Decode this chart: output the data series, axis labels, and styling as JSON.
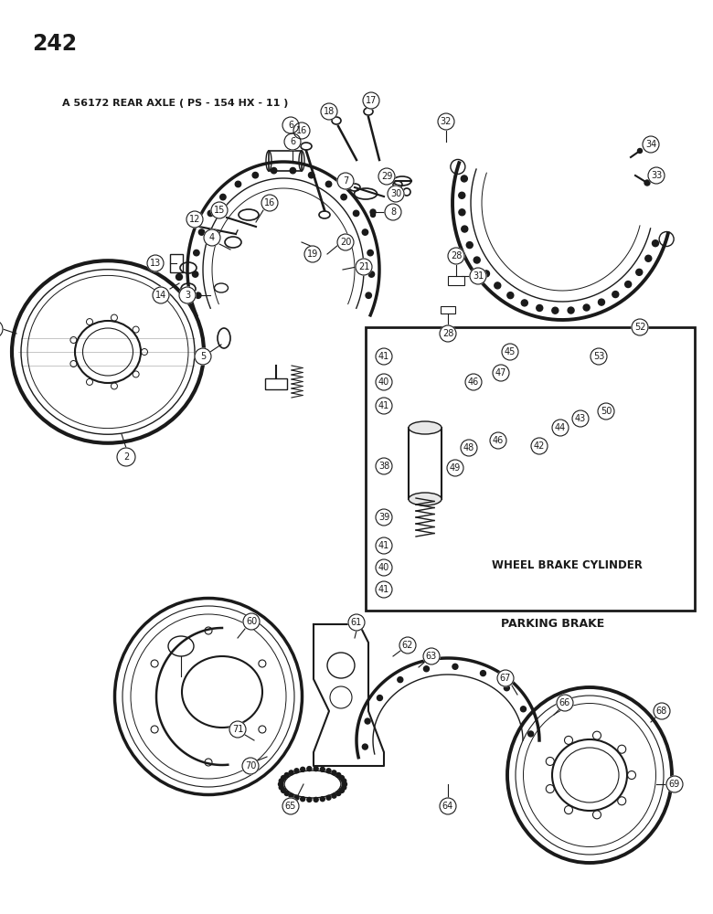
{
  "page_number": "242",
  "title_label": "A 56172 REAR AXLE ( PS - 154 HX - 11 )",
  "background_color": "#ffffff",
  "text_color": "#1a1a1a",
  "wheel_brake_cylinder_label": "WHEEL BRAKE CYLINDER",
  "parking_brake_label": "PARKING BRAKE",
  "figsize": [
    7.8,
    10.0
  ],
  "dpi": 100
}
